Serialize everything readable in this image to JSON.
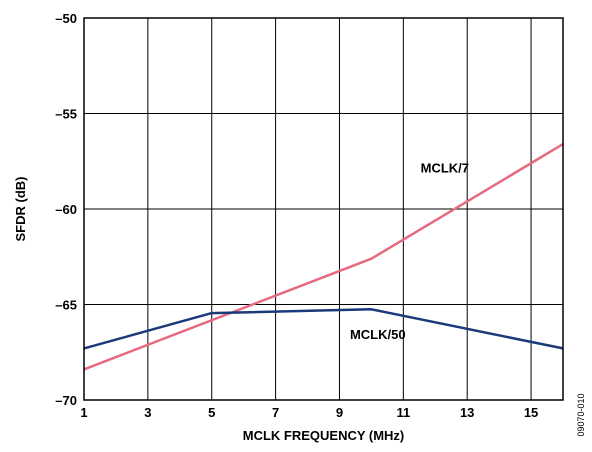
{
  "chart_data": {
    "type": "line",
    "title": "",
    "xlabel": "MCLK FREQUENCY (MHz)",
    "ylabel": "SFDR (dB)",
    "xlim": [
      1,
      16
    ],
    "ylim": [
      -70,
      -50
    ],
    "x_ticks": [
      1,
      3,
      5,
      7,
      9,
      11,
      13,
      15
    ],
    "x_tick_labels": [
      "1",
      "3",
      "5",
      "7",
      "9",
      "11",
      "13",
      "15"
    ],
    "y_ticks": [
      -50,
      -55,
      -60,
      -65,
      -70
    ],
    "y_tick_labels": [
      "–50",
      "–55",
      "–60",
      "–65",
      "–70"
    ],
    "grid": true,
    "series": [
      {
        "name": "MCLK/7",
        "color": "#e8697f",
        "x": [
          1,
          10,
          16
        ],
        "y": [
          -68.4,
          -62.6,
          -56.6
        ]
      },
      {
        "name": "MCLK/50",
        "color": "#1a3a7a",
        "x": [
          1,
          5,
          10,
          16
        ],
        "y": [
          -67.3,
          -65.45,
          -65.25,
          -67.3
        ]
      }
    ],
    "annotations": [
      {
        "text": "MCLK/7",
        "x": 12.3,
        "y": -58.1
      },
      {
        "text": "MCLK/50",
        "x": 10.2,
        "y": -66.8
      }
    ]
  },
  "figure_id": "09070-010"
}
